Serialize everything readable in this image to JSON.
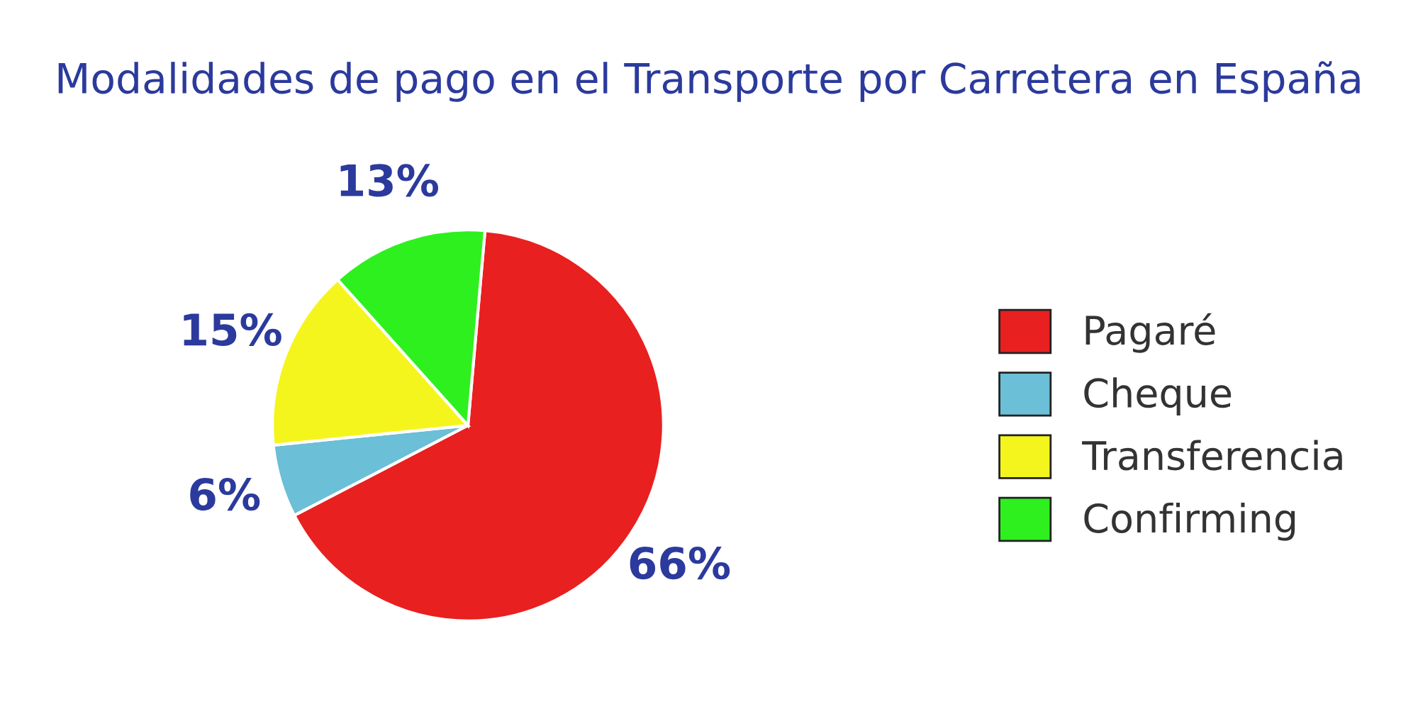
{
  "chart_data": {
    "type": "pie",
    "title": "Modalidades de pago en el Transporte por Carretera en España",
    "categories": [
      "Pagaré",
      "Cheque",
      "Transferencia",
      "Confirming"
    ],
    "values": [
      66,
      6,
      15,
      13
    ],
    "colors": [
      "#e82020",
      "#6bbfd6",
      "#f5f51e",
      "#2ef01e"
    ],
    "value_labels": [
      "66%",
      "6%",
      "15%",
      "13%"
    ],
    "legend": "right"
  }
}
